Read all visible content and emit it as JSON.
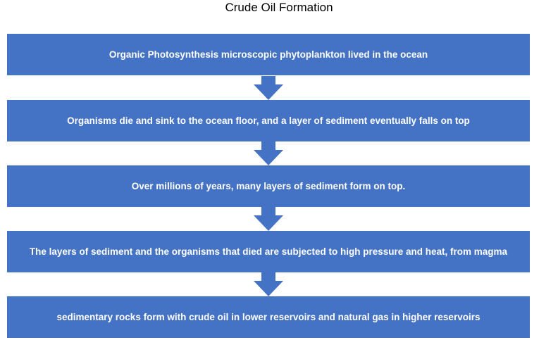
{
  "diagram": {
    "title": "Crude Oil Formation",
    "steps": [
      {
        "label": "Organic Photosynthesis microscopic phytoplankton lived in the ocean"
      },
      {
        "label": "Organisms die and sink to the ocean floor, and a layer of sediment eventually falls on top"
      },
      {
        "label": "Over millions of years, many layers of sediment form on top."
      },
      {
        "label": "The layers of sediment and the organisms that died are subjected to high pressure and heat, from magma"
      },
      {
        "label": "sedimentary rocks form with crude oil in lower reservoirs and natural gas in higher reservoirs"
      }
    ],
    "colors": {
      "box_fill": "#4472c4",
      "arrow_fill": "#4472c4",
      "box_text": "#ffffff"
    }
  }
}
